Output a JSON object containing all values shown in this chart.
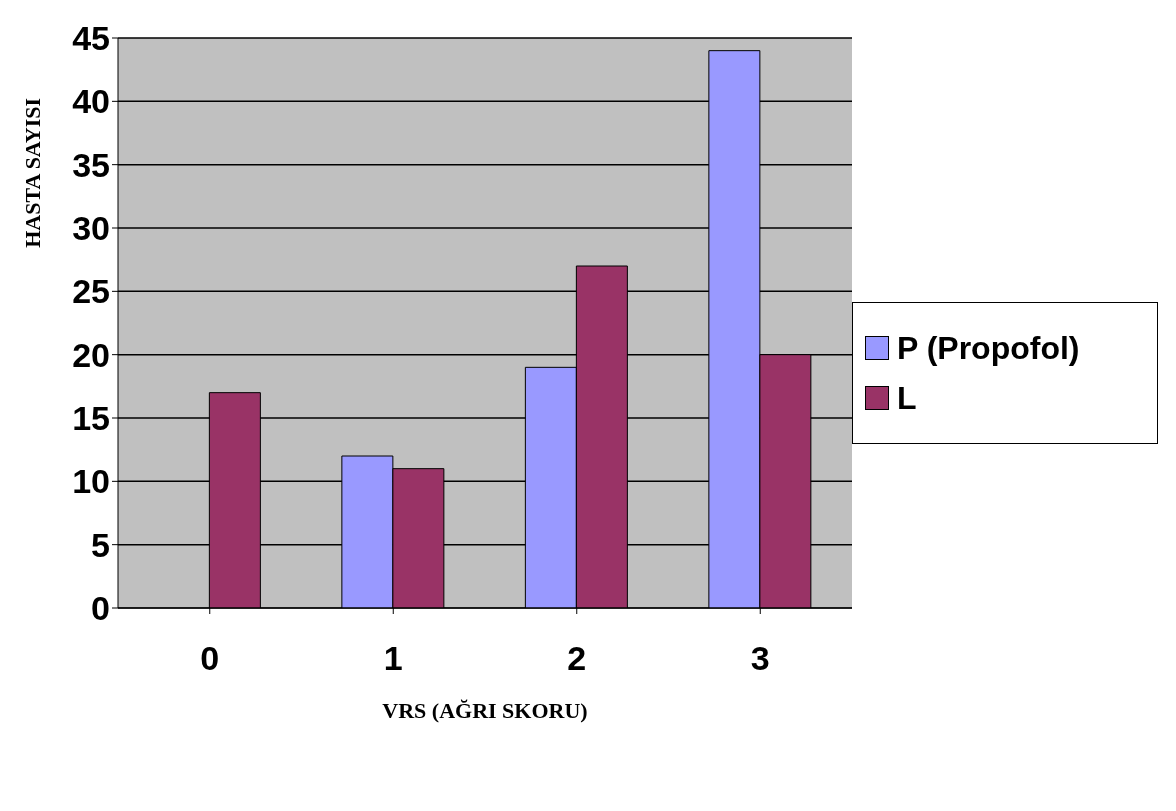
{
  "chart_data": {
    "type": "bar",
    "xlabel": "VRS (AĞRI SKORU)",
    "ylabel": "HASTA SAYISI",
    "categories": [
      "0",
      "1",
      "2",
      "3"
    ],
    "series": [
      {
        "name": "P (Propofol)",
        "color": "#9999ff",
        "values": [
          0,
          12,
          19,
          44
        ]
      },
      {
        "name": "L",
        "color": "#993366",
        "values": [
          17,
          11,
          27,
          20
        ]
      }
    ],
    "ylim": [
      0,
      45
    ],
    "yticks": [
      0,
      5,
      10,
      15,
      20,
      25,
      30,
      35,
      40,
      45
    ],
    "grid": "y",
    "legend": "right"
  }
}
